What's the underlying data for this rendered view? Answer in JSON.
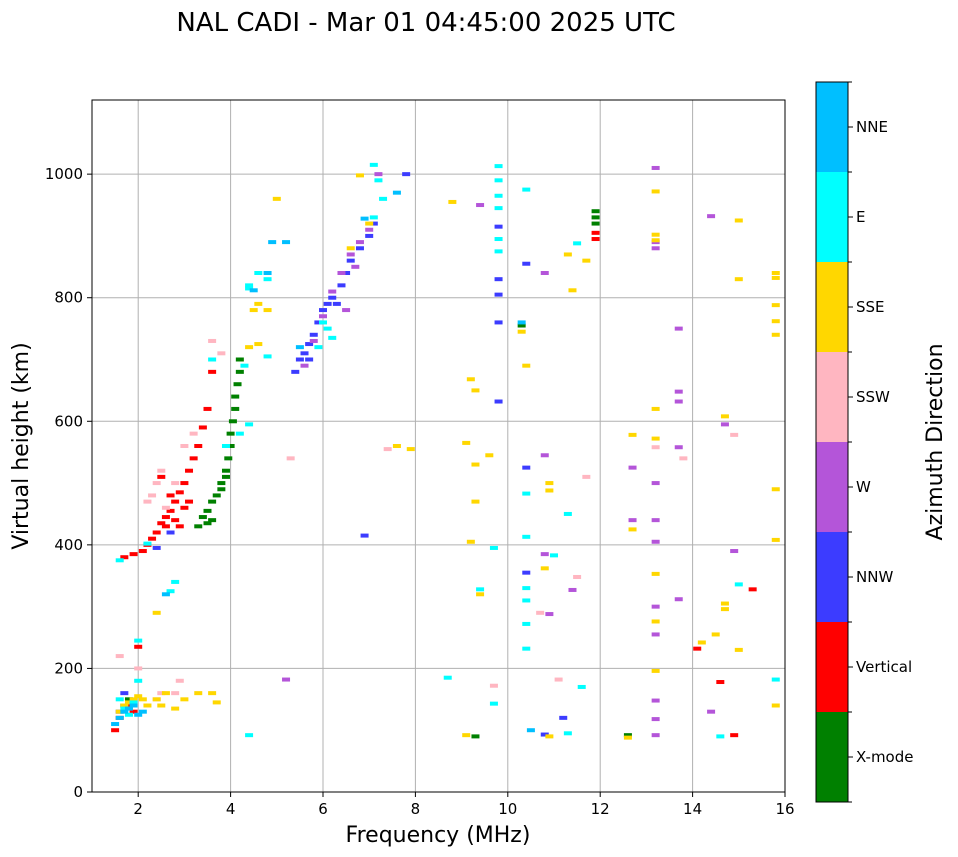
{
  "chart_data": {
    "type": "scatter",
    "title": "NAL CADI - Mar 01 04:45:00 2025 UTC",
    "xlabel": "Frequency (MHz)",
    "ylabel": "Virtual height (km)",
    "xlim": [
      1,
      16
    ],
    "ylim": [
      0,
      1120
    ],
    "xticks": [
      2,
      4,
      6,
      8,
      10,
      12,
      14,
      16
    ],
    "yticks": [
      0,
      200,
      400,
      600,
      800,
      1000
    ],
    "grid": true,
    "colorbar": {
      "title": "Azimuth Direction",
      "labels": [
        "X-mode",
        "Vertical",
        "NNW",
        "W",
        "SSW",
        "SSE",
        "E",
        "NNE"
      ],
      "colors": [
        "#008000",
        "#ff0000",
        "#3c3cff",
        "#b455d9",
        "#ffb6c1",
        "#ffd700",
        "#00ffff",
        "#00bfff"
      ]
    },
    "series": [
      {
        "name": "X-mode",
        "points": [
          [
            3.3,
            430
          ],
          [
            3.4,
            445
          ],
          [
            3.5,
            455
          ],
          [
            3.6,
            470
          ],
          [
            3.7,
            480
          ],
          [
            3.8,
            500
          ],
          [
            3.9,
            520
          ],
          [
            3.95,
            540
          ],
          [
            4.0,
            560
          ],
          [
            4.0,
            580
          ],
          [
            4.05,
            600
          ],
          [
            4.1,
            620
          ],
          [
            4.1,
            640
          ],
          [
            4.15,
            660
          ],
          [
            4.2,
            680
          ],
          [
            4.2,
            700
          ],
          [
            3.9,
            510
          ],
          [
            3.8,
            490
          ],
          [
            3.6,
            440
          ],
          [
            3.5,
            435
          ],
          [
            11.9,
            940
          ],
          [
            11.9,
            930
          ],
          [
            11.9,
            920
          ],
          [
            10.3,
            755
          ],
          [
            12.6,
            92
          ],
          [
            9.3,
            90
          ],
          [
            1.7,
            140
          ],
          [
            1.8,
            150
          ]
        ]
      },
      {
        "name": "Vertical",
        "points": [
          [
            1.7,
            380
          ],
          [
            1.9,
            385
          ],
          [
            2.1,
            390
          ],
          [
            2.2,
            400
          ],
          [
            2.3,
            410
          ],
          [
            2.4,
            420
          ],
          [
            2.5,
            435
          ],
          [
            2.6,
            445
          ],
          [
            2.7,
            455
          ],
          [
            2.8,
            470
          ],
          [
            2.9,
            485
          ],
          [
            3.0,
            500
          ],
          [
            3.1,
            520
          ],
          [
            3.2,
            540
          ],
          [
            3.3,
            560
          ],
          [
            3.4,
            590
          ],
          [
            3.5,
            620
          ],
          [
            3.6,
            680
          ],
          [
            2.6,
            430
          ],
          [
            2.8,
            440
          ],
          [
            3.0,
            460
          ],
          [
            2.9,
            430
          ],
          [
            2.7,
            480
          ],
          [
            2.5,
            510
          ],
          [
            3.1,
            470
          ],
          [
            11.9,
            905
          ],
          [
            11.9,
            895
          ],
          [
            15.3,
            328
          ],
          [
            14.6,
            178
          ],
          [
            14.9,
            92
          ],
          [
            14.1,
            232
          ],
          [
            1.5,
            100
          ],
          [
            1.6,
            120
          ],
          [
            1.8,
            140
          ],
          [
            1.9,
            130
          ],
          [
            2.0,
            235
          ]
        ]
      },
      {
        "name": "NNW",
        "points": [
          [
            5.4,
            680
          ],
          [
            5.5,
            700
          ],
          [
            5.6,
            710
          ],
          [
            5.7,
            725
          ],
          [
            5.8,
            740
          ],
          [
            5.9,
            760
          ],
          [
            6.0,
            780
          ],
          [
            6.1,
            790
          ],
          [
            6.2,
            800
          ],
          [
            6.4,
            820
          ],
          [
            6.5,
            840
          ],
          [
            6.6,
            860
          ],
          [
            6.8,
            880
          ],
          [
            7.0,
            900
          ],
          [
            7.1,
            920
          ],
          [
            6.9,
            415
          ],
          [
            7.8,
            1000
          ],
          [
            9.8,
            760
          ],
          [
            9.8,
            805
          ],
          [
            9.8,
            830
          ],
          [
            9.8,
            915
          ],
          [
            9.8,
            632
          ],
          [
            10.4,
            855
          ],
          [
            10.4,
            525
          ],
          [
            10.4,
            355
          ],
          [
            11.2,
            120
          ],
          [
            10.8,
            93
          ],
          [
            1.6,
            130
          ],
          [
            1.7,
            160
          ],
          [
            5.7,
            700
          ],
          [
            6.3,
            790
          ],
          [
            2.7,
            420
          ],
          [
            2.4,
            395
          ]
        ]
      },
      {
        "name": "W",
        "points": [
          [
            5.6,
            690
          ],
          [
            5.8,
            730
          ],
          [
            6.0,
            770
          ],
          [
            6.2,
            810
          ],
          [
            6.4,
            840
          ],
          [
            6.6,
            870
          ],
          [
            6.8,
            890
          ],
          [
            7.0,
            910
          ],
          [
            7.2,
            1000
          ],
          [
            9.4,
            950
          ],
          [
            10.8,
            840
          ],
          [
            10.8,
            545
          ],
          [
            10.8,
            385
          ],
          [
            10.9,
            288
          ],
          [
            11.4,
            327
          ],
          [
            12.7,
            525
          ],
          [
            12.7,
            440
          ],
          [
            13.2,
            1010
          ],
          [
            13.2,
            890
          ],
          [
            13.2,
            880
          ],
          [
            13.2,
            500
          ],
          [
            13.2,
            440
          ],
          [
            13.2,
            405
          ],
          [
            13.2,
            300
          ],
          [
            13.2,
            255
          ],
          [
            13.2,
            148
          ],
          [
            13.2,
            118
          ],
          [
            13.2,
            92
          ],
          [
            13.7,
            750
          ],
          [
            13.7,
            648
          ],
          [
            13.7,
            632
          ],
          [
            13.7,
            558
          ],
          [
            13.7,
            312
          ],
          [
            14.4,
            932
          ],
          [
            14.4,
            130
          ],
          [
            14.7,
            595
          ],
          [
            14.9,
            390
          ],
          [
            5.2,
            182
          ],
          [
            6.5,
            780
          ],
          [
            6.7,
            850
          ]
        ]
      },
      {
        "name": "SSW",
        "points": [
          [
            2.3,
            480
          ],
          [
            2.4,
            500
          ],
          [
            2.5,
            520
          ],
          [
            2.6,
            460
          ],
          [
            2.8,
            500
          ],
          [
            2.2,
            470
          ],
          [
            3.0,
            560
          ],
          [
            3.2,
            580
          ],
          [
            3.6,
            730
          ],
          [
            3.8,
            710
          ],
          [
            5.3,
            540
          ],
          [
            7.4,
            555
          ],
          [
            10.7,
            290
          ],
          [
            11.5,
            348
          ],
          [
            11.1,
            182
          ],
          [
            11.7,
            510
          ],
          [
            13.2,
            558
          ],
          [
            13.8,
            540
          ],
          [
            14.9,
            578
          ],
          [
            9.7,
            172
          ],
          [
            2.4,
            150
          ],
          [
            2.5,
            160
          ],
          [
            2.8,
            160
          ],
          [
            2.9,
            180
          ],
          [
            1.6,
            220
          ],
          [
            2.0,
            200
          ]
        ]
      },
      {
        "name": "SSE",
        "points": [
          [
            1.6,
            130
          ],
          [
            1.7,
            140
          ],
          [
            1.8,
            145
          ],
          [
            1.9,
            150
          ],
          [
            2.0,
            155
          ],
          [
            2.1,
            150
          ],
          [
            2.2,
            140
          ],
          [
            2.4,
            150
          ],
          [
            2.5,
            140
          ],
          [
            2.6,
            160
          ],
          [
            2.8,
            135
          ],
          [
            3.0,
            150
          ],
          [
            3.3,
            160
          ],
          [
            3.6,
            160
          ],
          [
            3.7,
            145
          ],
          [
            2.4,
            290
          ],
          [
            4.5,
            780
          ],
          [
            4.6,
            790
          ],
          [
            4.8,
            780
          ],
          [
            4.4,
            720
          ],
          [
            4.6,
            725
          ],
          [
            5.0,
            960
          ],
          [
            6.8,
            998
          ],
          [
            6.6,
            880
          ],
          [
            7.0,
            920
          ],
          [
            7.6,
            560
          ],
          [
            7.9,
            555
          ],
          [
            8.8,
            955
          ],
          [
            9.1,
            565
          ],
          [
            9.2,
            668
          ],
          [
            9.3,
            650
          ],
          [
            9.3,
            530
          ],
          [
            9.3,
            470
          ],
          [
            9.2,
            405
          ],
          [
            9.4,
            320
          ],
          [
            9.6,
            545
          ],
          [
            9.1,
            92
          ],
          [
            10.3,
            745
          ],
          [
            10.4,
            690
          ],
          [
            10.9,
            500
          ],
          [
            10.9,
            488
          ],
          [
            10.8,
            362
          ],
          [
            11.3,
            870
          ],
          [
            11.4,
            812
          ],
          [
            11.7,
            860
          ],
          [
            12.7,
            578
          ],
          [
            12.7,
            425
          ],
          [
            13.2,
            972
          ],
          [
            13.2,
            902
          ],
          [
            13.2,
            893
          ],
          [
            13.2,
            620
          ],
          [
            13.2,
            572
          ],
          [
            13.2,
            353
          ],
          [
            13.2,
            276
          ],
          [
            13.2,
            196
          ],
          [
            14.5,
            255
          ],
          [
            14.2,
            242
          ],
          [
            14.7,
            608
          ],
          [
            14.7,
            305
          ],
          [
            14.7,
            296
          ],
          [
            15.0,
            925
          ],
          [
            15.0,
            830
          ],
          [
            15.0,
            230
          ],
          [
            15.8,
            840
          ],
          [
            15.8,
            832
          ],
          [
            15.8,
            788
          ],
          [
            15.8,
            762
          ],
          [
            15.8,
            740
          ],
          [
            15.8,
            490
          ],
          [
            15.8,
            408
          ],
          [
            15.8,
            140
          ],
          [
            10.9,
            90
          ],
          [
            12.6,
            88
          ]
        ]
      },
      {
        "name": "E",
        "points": [
          [
            1.6,
            375
          ],
          [
            2.2,
            402
          ],
          [
            2.0,
            245
          ],
          [
            2.7,
            325
          ],
          [
            2.8,
            340
          ],
          [
            3.6,
            700
          ],
          [
            3.9,
            560
          ],
          [
            4.2,
            580
          ],
          [
            4.3,
            690
          ],
          [
            4.4,
            815
          ],
          [
            4.6,
            840
          ],
          [
            4.8,
            830
          ],
          [
            4.8,
            705
          ],
          [
            4.4,
            820
          ],
          [
            5.9,
            720
          ],
          [
            6.0,
            760
          ],
          [
            6.1,
            750
          ],
          [
            6.2,
            735
          ],
          [
            7.1,
            1015
          ],
          [
            7.2,
            990
          ],
          [
            7.3,
            960
          ],
          [
            7.1,
            930
          ],
          [
            9.8,
            1013
          ],
          [
            9.8,
            990
          ],
          [
            9.8,
            965
          ],
          [
            9.8,
            945
          ],
          [
            9.8,
            895
          ],
          [
            9.8,
            875
          ],
          [
            10.4,
            975
          ],
          [
            10.4,
            483
          ],
          [
            10.4,
            413
          ],
          [
            10.4,
            330
          ],
          [
            10.4,
            310
          ],
          [
            10.4,
            272
          ],
          [
            10.4,
            232
          ],
          [
            11.0,
            383
          ],
          [
            11.3,
            450
          ],
          [
            11.5,
            888
          ],
          [
            11.6,
            170
          ],
          [
            11.3,
            95
          ],
          [
            9.7,
            395
          ],
          [
            9.7,
            143
          ],
          [
            8.7,
            185
          ],
          [
            9.4,
            328
          ],
          [
            14.6,
            90
          ],
          [
            15.0,
            336
          ],
          [
            15.8,
            182
          ],
          [
            4.4,
            92
          ],
          [
            1.7,
            135
          ],
          [
            1.8,
            125
          ],
          [
            1.6,
            150
          ],
          [
            1.9,
            145
          ],
          [
            2.0,
            180
          ],
          [
            4.4,
            595
          ]
        ]
      },
      {
        "name": "NNE",
        "points": [
          [
            1.6,
            120
          ],
          [
            1.7,
            130
          ],
          [
            1.8,
            135
          ],
          [
            1.9,
            140
          ],
          [
            2.0,
            125
          ],
          [
            2.1,
            130
          ],
          [
            4.5,
            812
          ],
          [
            4.9,
            890
          ],
          [
            4.8,
            840
          ],
          [
            5.5,
            720
          ],
          [
            7.6,
            970
          ],
          [
            10.3,
            760
          ],
          [
            10.5,
            100
          ],
          [
            5.2,
            890
          ],
          [
            6.9,
            928
          ],
          [
            2.6,
            320
          ],
          [
            1.5,
            110
          ]
        ]
      }
    ]
  }
}
